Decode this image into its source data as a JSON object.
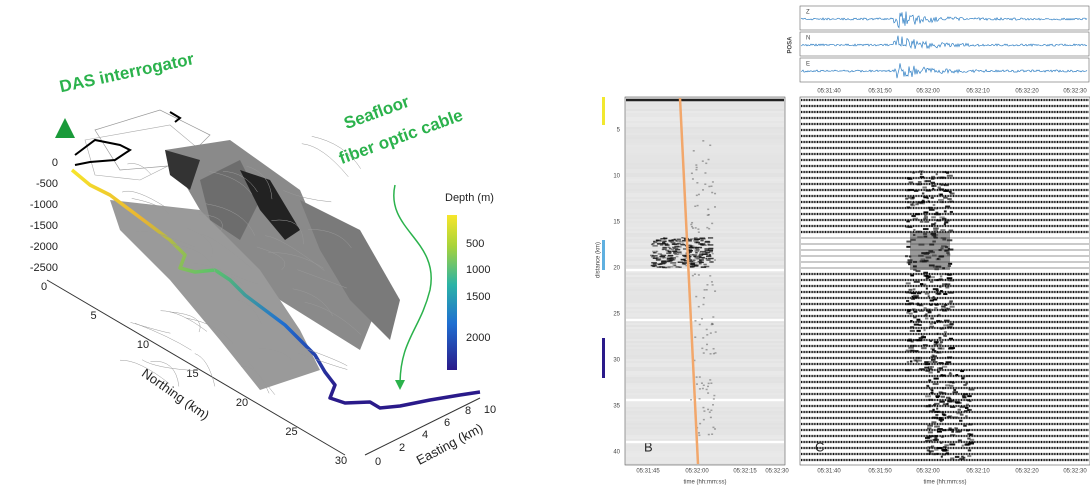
{
  "map": {
    "interrogator": "DAS interrogator",
    "cable": [
      "Seafloor",
      "fiber optic cable"
    ],
    "colorbar": {
      "title": "Depth (m)",
      "ticks": [
        500,
        1000,
        1500,
        2000
      ]
    },
    "z_ticks": [
      0,
      -500,
      -1000,
      -1500,
      -2000,
      -2500
    ],
    "northing": {
      "label": "Northing (km)",
      "ticks": [
        0,
        5,
        10,
        15,
        20,
        25,
        30
      ]
    },
    "easting": {
      "label": "Easting (km)",
      "ticks": [
        0,
        2,
        4,
        6,
        8,
        10
      ]
    }
  },
  "panel_b": {
    "letter": "B",
    "y_label": "distance (km)",
    "y_ticks": [
      5,
      10,
      15,
      20,
      25,
      30,
      35,
      40
    ],
    "x_label": "time (hh:mm:ss)",
    "x_ticks": [
      "05:31:45",
      "05:32:00",
      "05:32:15",
      "05:32:30"
    ]
  },
  "panel_c": {
    "letter": "C",
    "x_label": "time (hh:mm:ss)",
    "x_ticks": [
      "05:31:40",
      "05:31:50",
      "05:32:00",
      "05:32:10",
      "05:32:20",
      "05:32:30"
    ]
  },
  "traces": {
    "station": "POSA",
    "components": [
      "Z",
      "N",
      "E"
    ],
    "x_ticks": [
      "05:31:40",
      "05:31:50",
      "05:32:00",
      "05:32:10",
      "05:32:20",
      "05:32:30"
    ]
  }
}
